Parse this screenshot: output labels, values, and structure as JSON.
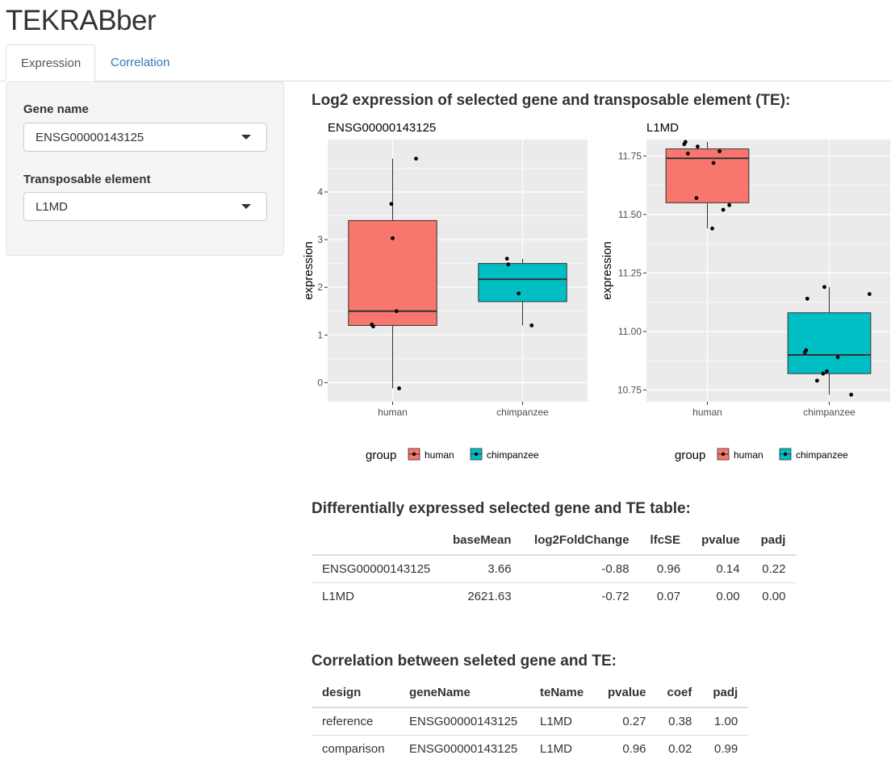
{
  "app": {
    "title": "TEKRABber"
  },
  "tabs": [
    {
      "label": "Expression",
      "active": true
    },
    {
      "label": "Correlation",
      "active": false
    }
  ],
  "sidebar": {
    "gene": {
      "label": "Gene name",
      "value": "ENSG00000143125"
    },
    "te": {
      "label": "Transposable element",
      "value": "L1MD"
    }
  },
  "main": {
    "plot_title": "Log2 expression of selected gene and transposable element (TE):",
    "de_title": "Differentially expressed selected gene and TE table:",
    "corr_title": "Correlation between seleted gene and TE:"
  },
  "colors": {
    "human": "#F8766D",
    "chimpanzee": "#00BFC4",
    "panel_bg": "#EBEBEB",
    "link": "#337ab7"
  },
  "chart_data": [
    {
      "type": "boxplot",
      "title": "ENSG00000143125",
      "ylabel": "expression",
      "categories": [
        "human",
        "chimpanzee"
      ],
      "ylim": [
        -0.4,
        5.1
      ],
      "yticks": [
        "0",
        "1",
        "2",
        "3",
        "4"
      ],
      "boxes": [
        {
          "group": "human",
          "whisker_low": -0.12,
          "q1": 1.2,
          "median": 1.5,
          "q3": 3.4,
          "whisker_high": 4.7
        },
        {
          "group": "chimpanzee",
          "whisker_low": 1.2,
          "q1": 1.7,
          "median": 2.17,
          "q3": 2.5,
          "whisker_high": 2.6
        }
      ],
      "points": [
        {
          "group": "human",
          "jitter": 0.18,
          "y": 4.7
        },
        {
          "group": "human",
          "jitter": -0.01,
          "y": 3.75
        },
        {
          "group": "human",
          "jitter": 0.0,
          "y": 3.03
        },
        {
          "group": "human",
          "jitter": 0.03,
          "y": 1.5
        },
        {
          "group": "human",
          "jitter": -0.16,
          "y": 1.22
        },
        {
          "group": "human",
          "jitter": -0.15,
          "y": 1.18
        },
        {
          "group": "human",
          "jitter": 0.05,
          "y": -0.12
        },
        {
          "group": "chimpanzee",
          "jitter": -0.12,
          "y": 2.6
        },
        {
          "group": "chimpanzee",
          "jitter": -0.11,
          "y": 2.48
        },
        {
          "group": "chimpanzee",
          "jitter": -0.03,
          "y": 1.87
        },
        {
          "group": "chimpanzee",
          "jitter": 0.07,
          "y": 1.2
        }
      ],
      "legend": {
        "title": "group",
        "entries": [
          "human",
          "chimpanzee"
        ],
        "position": "bottom"
      }
    },
    {
      "type": "boxplot",
      "title": "L1MD",
      "ylabel": "expression",
      "categories": [
        "human",
        "chimpanzee"
      ],
      "ylim": [
        10.7,
        11.82
      ],
      "yticks": [
        "10.75",
        "11.00",
        "11.25",
        "11.50",
        "11.75"
      ],
      "boxes": [
        {
          "group": "human",
          "whisker_low": 11.44,
          "q1": 11.55,
          "median": 11.74,
          "q3": 11.78,
          "whisker_high": 11.81
        },
        {
          "group": "chimpanzee",
          "whisker_low": 10.73,
          "q1": 10.82,
          "median": 10.9,
          "q3": 11.08,
          "whisker_high": 11.19
        }
      ],
      "points": [
        {
          "group": "human",
          "jitter": -0.18,
          "y": 11.81
        },
        {
          "group": "human",
          "jitter": -0.19,
          "y": 11.8
        },
        {
          "group": "human",
          "jitter": -0.08,
          "y": 11.79
        },
        {
          "group": "human",
          "jitter": 0.1,
          "y": 11.77
        },
        {
          "group": "human",
          "jitter": -0.16,
          "y": 11.76
        },
        {
          "group": "human",
          "jitter": 0.05,
          "y": 11.72
        },
        {
          "group": "human",
          "jitter": -0.09,
          "y": 11.57
        },
        {
          "group": "human",
          "jitter": 0.18,
          "y": 11.54
        },
        {
          "group": "human",
          "jitter": 0.13,
          "y": 11.52
        },
        {
          "group": "human",
          "jitter": 0.04,
          "y": 11.44
        },
        {
          "group": "chimpanzee",
          "jitter": -0.04,
          "y": 11.19
        },
        {
          "group": "chimpanzee",
          "jitter": 0.33,
          "y": 11.16
        },
        {
          "group": "chimpanzee",
          "jitter": -0.18,
          "y": 11.14
        },
        {
          "group": "chimpanzee",
          "jitter": -0.19,
          "y": 10.92
        },
        {
          "group": "chimpanzee",
          "jitter": -0.2,
          "y": 10.91
        },
        {
          "group": "chimpanzee",
          "jitter": 0.07,
          "y": 10.89
        },
        {
          "group": "chimpanzee",
          "jitter": -0.02,
          "y": 10.83
        },
        {
          "group": "chimpanzee",
          "jitter": -0.05,
          "y": 10.82
        },
        {
          "group": "chimpanzee",
          "jitter": -0.1,
          "y": 10.79
        },
        {
          "group": "chimpanzee",
          "jitter": 0.18,
          "y": 10.73
        }
      ],
      "legend": {
        "title": "group",
        "entries": [
          "human",
          "chimpanzee"
        ],
        "position": "bottom"
      }
    }
  ],
  "de_table": {
    "headers": [
      "",
      "baseMean",
      "log2FoldChange",
      "lfcSE",
      "pvalue",
      "padj"
    ],
    "rows": [
      [
        "ENSG00000143125",
        "3.66",
        "-0.88",
        "0.96",
        "0.14",
        "0.22"
      ],
      [
        "L1MD",
        "2621.63",
        "-0.72",
        "0.07",
        "0.00",
        "0.00"
      ]
    ]
  },
  "corr_table": {
    "headers": [
      "design",
      "geneName",
      "teName",
      "pvalue",
      "coef",
      "padj"
    ],
    "rows": [
      [
        "reference",
        "ENSG00000143125",
        "L1MD",
        "0.27",
        "0.38",
        "1.00"
      ],
      [
        "comparison",
        "ENSG00000143125",
        "L1MD",
        "0.96",
        "0.02",
        "0.99"
      ]
    ]
  }
}
